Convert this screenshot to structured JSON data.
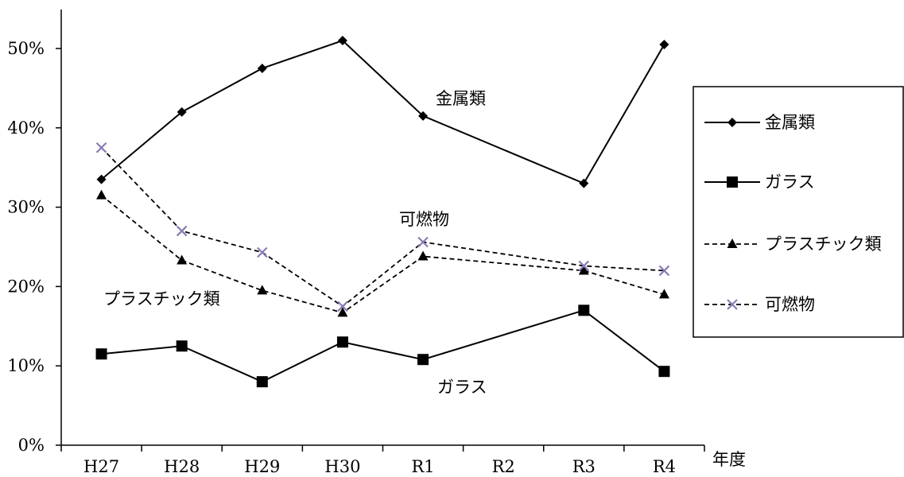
{
  "chart_data": {
    "type": "line",
    "xlabel": "年度",
    "ylabel": "",
    "ylim": [
      0,
      55
    ],
    "yticks": [
      "0%",
      "10%",
      "20%",
      "30%",
      "40%",
      "50%"
    ],
    "categories": [
      "H27",
      "H28",
      "H29",
      "H30",
      "R1",
      "R2",
      "R3",
      "R4"
    ],
    "grid": false,
    "legend_position": "right",
    "series": [
      {
        "name": "金属類",
        "line_style": "solid",
        "marker": "diamond",
        "color": "#000000",
        "values": [
          33.5,
          42,
          47.5,
          51,
          41.5,
          null,
          33,
          50.5
        ]
      },
      {
        "name": "ガラス",
        "line_style": "solid",
        "marker": "square",
        "color": "#000000",
        "values": [
          11.5,
          12.5,
          8,
          13,
          10.8,
          null,
          17,
          9.3
        ]
      },
      {
        "name": "プラスチック類",
        "line_style": "dashed",
        "marker": "triangle",
        "color": "#000000",
        "values": [
          31.5,
          23.3,
          19.5,
          16.7,
          23.8,
          null,
          22,
          19
        ]
      },
      {
        "name": "可燃物",
        "line_style": "dashed",
        "marker": "cross",
        "color": "#000000",
        "marker_color": "#8a7bb5",
        "values": [
          37.5,
          27,
          24.3,
          17.5,
          25.6,
          null,
          22.6,
          22
        ]
      }
    ],
    "annotations": [
      {
        "text": "金属類",
        "series": "金属類"
      },
      {
        "text": "可燃物",
        "series": "可燃物"
      },
      {
        "text": "プラスチック類",
        "series": "プラスチック類"
      },
      {
        "text": "ガラス",
        "series": "ガラス"
      }
    ]
  }
}
